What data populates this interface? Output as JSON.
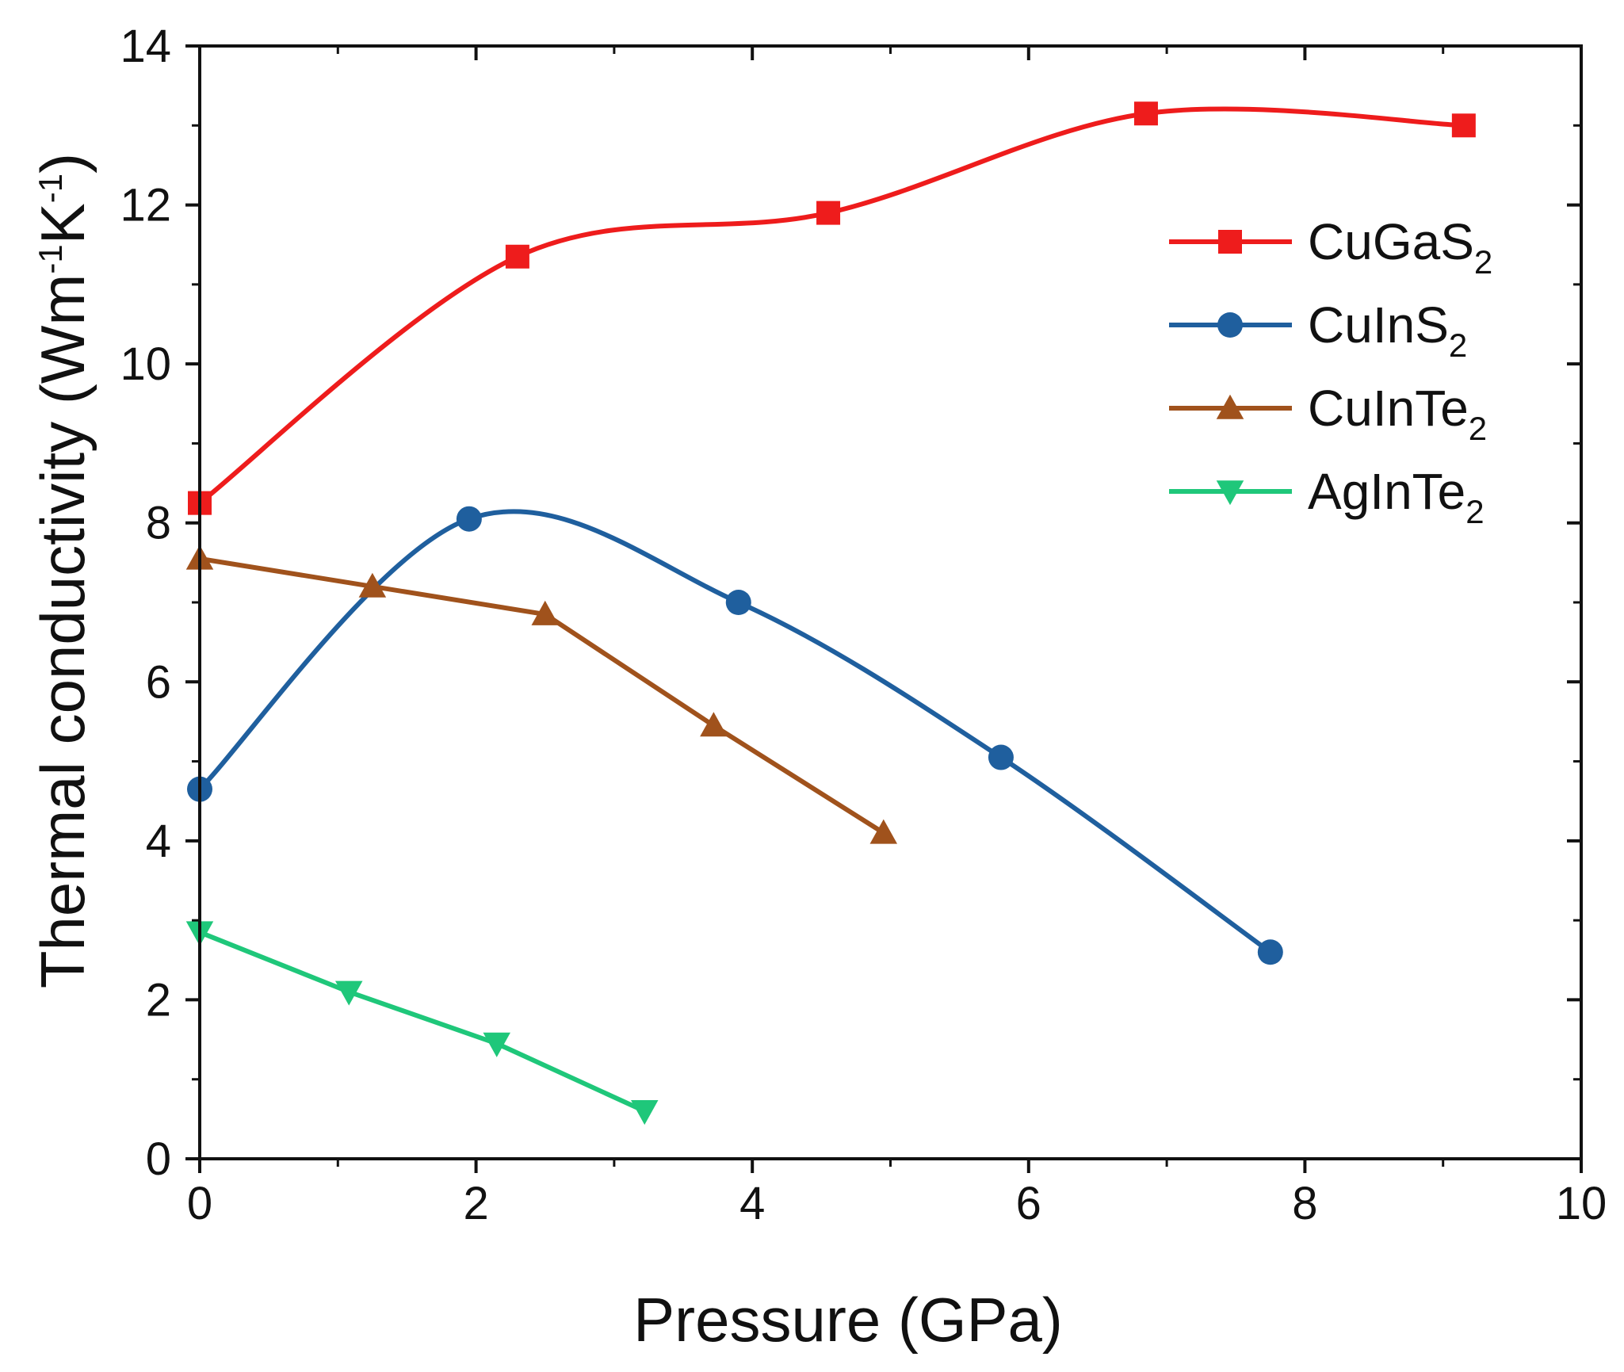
{
  "chart_data": {
    "type": "line",
    "title": "",
    "xlabel": "Pressure (GPa)",
    "ylabel_main": "Thermal conductivity (Wm",
    "ylabel_sup1": "-1",
    "ylabel_mid": "K",
    "ylabel_sup2": "-1",
    "ylabel_end": ")",
    "xlim": [
      0,
      10
    ],
    "ylim": [
      0,
      14
    ],
    "xticks": [
      "0",
      "2",
      "4",
      "6",
      "8",
      "10"
    ],
    "yticks": [
      "0",
      "2",
      "4",
      "6",
      "8",
      "10",
      "12",
      "14"
    ],
    "legend_position": "top-right",
    "series": [
      {
        "name": "CuGaS",
        "sub": "2",
        "color": "#ee1c1c",
        "marker": "square",
        "x": [
          0.0,
          2.3,
          4.55,
          6.85,
          9.15
        ],
        "y": [
          8.25,
          11.35,
          11.9,
          13.15,
          13.0
        ],
        "fit": "smooth"
      },
      {
        "name": "CuInS",
        "sub": "2",
        "color": "#1f5f9e",
        "marker": "circle",
        "x": [
          0.0,
          1.95,
          3.9,
          5.8,
          7.75
        ],
        "y": [
          4.65,
          8.05,
          7.0,
          5.05,
          2.6
        ],
        "fit": "smooth"
      },
      {
        "name": "CuInTe",
        "sub": "2",
        "color": "#a0521c",
        "marker": "triangle-up",
        "x": [
          0.0,
          1.25,
          2.5,
          3.72,
          4.95
        ],
        "y": [
          7.55,
          7.2,
          6.85,
          5.45,
          4.1
        ],
        "fit": "linear"
      },
      {
        "name": "AgInTe",
        "sub": "2",
        "color": "#1fc77a",
        "marker": "triangle-down",
        "x": [
          0.0,
          1.08,
          2.15,
          3.22
        ],
        "y": [
          2.85,
          2.1,
          1.45,
          0.6
        ],
        "fit": "linear"
      }
    ]
  }
}
